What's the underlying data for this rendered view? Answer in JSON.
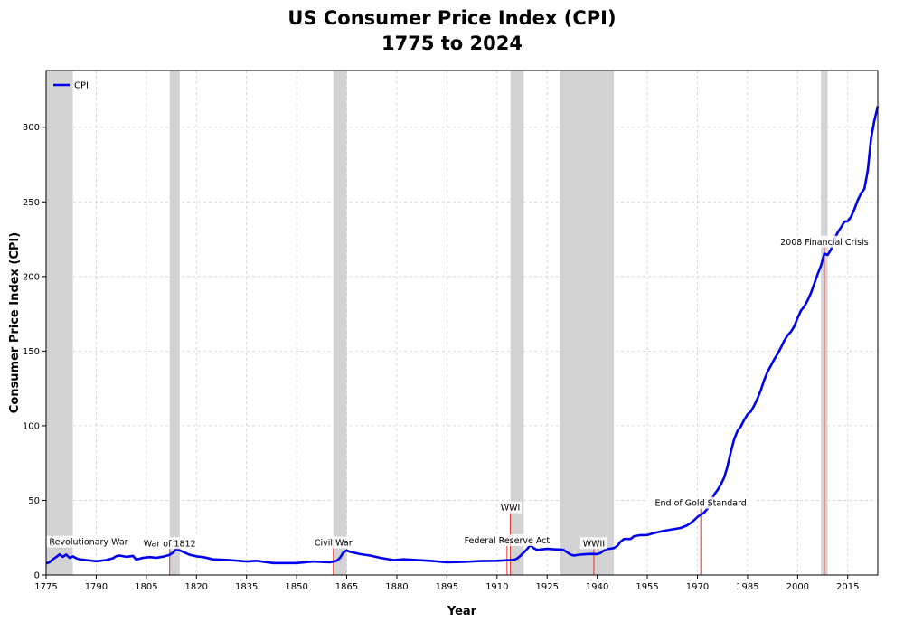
{
  "chart_data": {
    "type": "line",
    "title": "US Consumer Price Index (CPI)",
    "subtitle": "1775 to 2024",
    "xlabel": "Year",
    "ylabel": "Consumer Price Index (CPI)",
    "xlim": [
      1775,
      2024
    ],
    "ylim": [
      0,
      338
    ],
    "x_ticks": [
      1775,
      1790,
      1805,
      1820,
      1835,
      1850,
      1865,
      1880,
      1895,
      1910,
      1925,
      1940,
      1955,
      1970,
      1985,
      2000,
      2015
    ],
    "y_ticks": [
      0,
      50,
      100,
      150,
      200,
      250,
      300
    ],
    "grid": true,
    "legend_position": "top-left",
    "series": [
      {
        "name": "CPI",
        "color": "#0000ee",
        "points": [
          [
            1775,
            7.8
          ],
          [
            1776,
            8.5
          ],
          [
            1777,
            10.5
          ],
          [
            1778,
            12.0
          ],
          [
            1779,
            13.8
          ],
          [
            1780,
            12.2
          ],
          [
            1781,
            13.7
          ],
          [
            1782,
            11.5
          ],
          [
            1783,
            12.5
          ],
          [
            1784,
            11.2
          ],
          [
            1785,
            10.5
          ],
          [
            1787,
            10.0
          ],
          [
            1790,
            9.2
          ],
          [
            1793,
            10.0
          ],
          [
            1795,
            11.2
          ],
          [
            1796,
            12.6
          ],
          [
            1797,
            13.0
          ],
          [
            1799,
            12.2
          ],
          [
            1801,
            12.8
          ],
          [
            1802,
            10.3
          ],
          [
            1804,
            11.5
          ],
          [
            1806,
            12.0
          ],
          [
            1808,
            11.5
          ],
          [
            1810,
            12.3
          ],
          [
            1812,
            13.5
          ],
          [
            1813,
            15.0
          ],
          [
            1814,
            17.5
          ],
          [
            1815,
            16.5
          ],
          [
            1816,
            15.5
          ],
          [
            1818,
            13.5
          ],
          [
            1820,
            12.5
          ],
          [
            1822,
            12.0
          ],
          [
            1825,
            10.5
          ],
          [
            1830,
            10.0
          ],
          [
            1835,
            9.0
          ],
          [
            1838,
            9.5
          ],
          [
            1843,
            8.0
          ],
          [
            1850,
            8.0
          ],
          [
            1855,
            9.0
          ],
          [
            1860,
            8.5
          ],
          [
            1862,
            9.5
          ],
          [
            1863,
            11.5
          ],
          [
            1864,
            15.0
          ],
          [
            1865,
            16.5
          ],
          [
            1866,
            15.5
          ],
          [
            1869,
            14.0
          ],
          [
            1872,
            13.0
          ],
          [
            1875,
            11.5
          ],
          [
            1879,
            10.0
          ],
          [
            1882,
            10.5
          ],
          [
            1890,
            9.5
          ],
          [
            1895,
            8.5
          ],
          [
            1900,
            8.8
          ],
          [
            1905,
            9.3
          ],
          [
            1910,
            9.5
          ],
          [
            1913,
            9.9
          ],
          [
            1915,
            10.1
          ],
          [
            1916,
            11.0
          ],
          [
            1917,
            12.9
          ],
          [
            1918,
            15.1
          ],
          [
            1919,
            17.3
          ],
          [
            1920,
            20.0
          ],
          [
            1921,
            17.9
          ],
          [
            1922,
            16.8
          ],
          [
            1925,
            17.5
          ],
          [
            1928,
            17.1
          ],
          [
            1929,
            17.1
          ],
          [
            1930,
            16.7
          ],
          [
            1931,
            15.2
          ],
          [
            1932,
            13.7
          ],
          [
            1933,
            13.0
          ],
          [
            1935,
            13.7
          ],
          [
            1938,
            14.1
          ],
          [
            1940,
            14.0
          ],
          [
            1941,
            14.7
          ],
          [
            1942,
            16.3
          ],
          [
            1943,
            17.3
          ],
          [
            1945,
            18.0
          ],
          [
            1946,
            19.5
          ],
          [
            1947,
            22.3
          ],
          [
            1948,
            24.1
          ],
          [
            1950,
            24.1
          ],
          [
            1951,
            26.0
          ],
          [
            1953,
            26.7
          ],
          [
            1955,
            26.8
          ],
          [
            1957,
            28.1
          ],
          [
            1960,
            29.6
          ],
          [
            1965,
            31.5
          ],
          [
            1967,
            33.4
          ],
          [
            1968,
            34.8
          ],
          [
            1969,
            36.7
          ],
          [
            1970,
            38.8
          ],
          [
            1971,
            40.5
          ],
          [
            1972,
            41.8
          ],
          [
            1973,
            44.4
          ],
          [
            1974,
            49.3
          ],
          [
            1975,
            53.8
          ],
          [
            1976,
            56.9
          ],
          [
            1977,
            60.6
          ],
          [
            1978,
            65.2
          ],
          [
            1979,
            72.6
          ],
          [
            1980,
            82.4
          ],
          [
            1981,
            90.9
          ],
          [
            1982,
            96.5
          ],
          [
            1983,
            99.6
          ],
          [
            1984,
            103.9
          ],
          [
            1985,
            107.6
          ],
          [
            1986,
            109.6
          ],
          [
            1987,
            113.6
          ],
          [
            1988,
            118.3
          ],
          [
            1989,
            124.0
          ],
          [
            1990,
            130.7
          ],
          [
            1991,
            136.2
          ],
          [
            1992,
            140.3
          ],
          [
            1993,
            144.5
          ],
          [
            1994,
            148.2
          ],
          [
            1995,
            152.4
          ],
          [
            1996,
            156.9
          ],
          [
            1997,
            160.5
          ],
          [
            1998,
            163.0
          ],
          [
            1999,
            166.6
          ],
          [
            2000,
            172.2
          ],
          [
            2001,
            177.1
          ],
          [
            2002,
            179.9
          ],
          [
            2003,
            184.0
          ],
          [
            2004,
            188.9
          ],
          [
            2005,
            195.3
          ],
          [
            2006,
            201.6
          ],
          [
            2007,
            207.3
          ],
          [
            2008,
            215.3
          ],
          [
            2009,
            214.5
          ],
          [
            2010,
            218.1
          ],
          [
            2011,
            224.9
          ],
          [
            2012,
            229.6
          ],
          [
            2013,
            233.0
          ],
          [
            2014,
            236.7
          ],
          [
            2015,
            237.0
          ],
          [
            2016,
            240.0
          ],
          [
            2017,
            245.1
          ],
          [
            2018,
            251.1
          ],
          [
            2019,
            255.7
          ],
          [
            2020,
            258.8
          ],
          [
            2021,
            271.0
          ],
          [
            2022,
            292.7
          ],
          [
            2023,
            304.7
          ],
          [
            2024,
            314.0
          ]
        ]
      }
    ],
    "shaded_periods": [
      {
        "start": 1775,
        "end": 1783
      },
      {
        "start": 1812,
        "end": 1815
      },
      {
        "start": 1861,
        "end": 1865
      },
      {
        "start": 1914,
        "end": 1918
      },
      {
        "start": 1929,
        "end": 1945
      },
      {
        "start": 2007,
        "end": 2009
      }
    ],
    "annotations": [
      {
        "label": "Revolutionary War",
        "x": 1775,
        "marker_x": null,
        "label_level": 19
      },
      {
        "label": "War of 1812",
        "x": 1812,
        "marker_x": 1812,
        "label_level": 18
      },
      {
        "label": "Civil War",
        "x": 1861,
        "marker_x": 1861,
        "label_level": 18.5
      },
      {
        "label": "Federal Reserve Act",
        "x": 1913,
        "marker_x": 1913,
        "label_level": 20
      },
      {
        "label": "WWI",
        "x": 1914,
        "marker_x": 1914,
        "label_level": 42
      },
      {
        "label": "WWII",
        "x": 1939,
        "marker_x": 1939,
        "label_level": 18
      },
      {
        "label": "End of Gold Standard",
        "x": 1971,
        "marker_x": 1971,
        "label_level": 45
      },
      {
        "label": "2008 Financial Crisis",
        "x": 2008,
        "marker_x": 2008,
        "label_level": 220
      }
    ],
    "colors": {
      "line": "#0000ee",
      "shade": "#d3d3d3",
      "marker": "#e03030",
      "grid": "#cfcfcf"
    }
  }
}
